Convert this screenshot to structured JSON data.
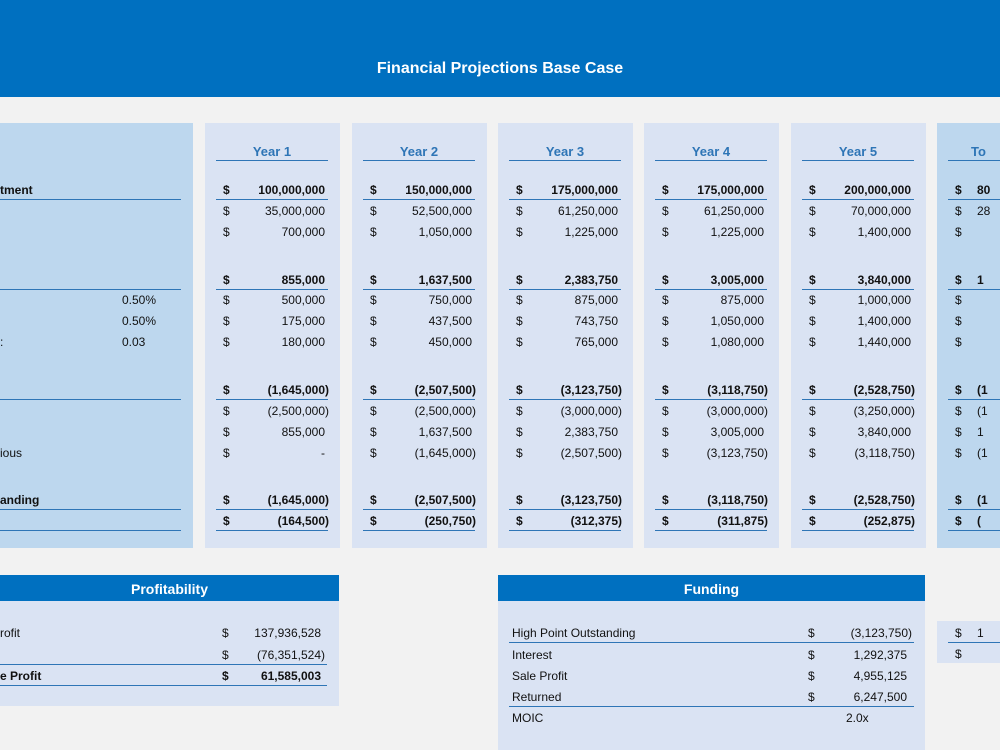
{
  "title": "Financial Projections Base Case",
  "colors": {
    "banner": "#0070c0",
    "accent": "#2e75b6",
    "panel": "#dae3f3",
    "label_panel": "#bdd7ee"
  },
  "labels": {
    "rows": [
      "tment",
      "",
      "",
      "",
      "",
      "",
      "",
      "",
      "",
      "",
      "ious",
      "anding",
      ""
    ],
    "rates": [
      "",
      "",
      "",
      "",
      "0.50%",
      "0.50%",
      "0.03",
      "",
      "",
      "",
      "",
      "",
      ""
    ],
    "row6_suffix": ":"
  },
  "years": [
    {
      "header": "Year 1",
      "values": [
        "100,000,000",
        "35,000,000",
        "700,000",
        "855,000",
        "500,000",
        "175,000",
        "180,000",
        "(1,645,000)",
        "(2,500,000)",
        "855,000",
        "-",
        "(1,645,000)",
        "(164,500)"
      ]
    },
    {
      "header": "Year 2",
      "values": [
        "150,000,000",
        "52,500,000",
        "1,050,000",
        "1,637,500",
        "750,000",
        "437,500",
        "450,000",
        "(2,507,500)",
        "(2,500,000)",
        "1,637,500",
        "(1,645,000)",
        "(2,507,500)",
        "(250,750)"
      ]
    },
    {
      "header": "Year 3",
      "values": [
        "175,000,000",
        "61,250,000",
        "1,225,000",
        "2,383,750",
        "875,000",
        "743,750",
        "765,000",
        "(3,123,750)",
        "(3,000,000)",
        "2,383,750",
        "(2,507,500)",
        "(3,123,750)",
        "(312,375)"
      ]
    },
    {
      "header": "Year 4",
      "values": [
        "175,000,000",
        "61,250,000",
        "1,225,000",
        "3,005,000",
        "875,000",
        "1,050,000",
        "1,080,000",
        "(3,118,750)",
        "(3,000,000)",
        "3,005,000",
        "(3,123,750)",
        "(3,118,750)",
        "(311,875)"
      ]
    },
    {
      "header": "Year 5",
      "values": [
        "200,000,000",
        "70,000,000",
        "1,400,000",
        "3,840,000",
        "1,000,000",
        "1,400,000",
        "1,440,000",
        "(2,528,750)",
        "(3,250,000)",
        "3,840,000",
        "(3,118,750)",
        "(2,528,750)",
        "(252,875)"
      ]
    }
  ],
  "total": {
    "header": "To",
    "values": [
      "80",
      "28",
      "",
      "1",
      "",
      "",
      "",
      "(1",
      "(1",
      "1",
      "(1",
      "(1",
      "("
    ]
  },
  "currency": "$",
  "profitability": {
    "title": "Profitability",
    "rows": [
      {
        "label": "rofit",
        "value": "137,936,528"
      },
      {
        "label": "",
        "value": "(76,351,524)"
      },
      {
        "label": "e Profit",
        "value": "61,585,003"
      }
    ]
  },
  "funding": {
    "title": "Funding",
    "rows": [
      {
        "label": "High Point Outstanding",
        "value": "(3,123,750)",
        "cur": true
      },
      {
        "label": "Interest",
        "value": "1,292,375",
        "cur": true
      },
      {
        "label": "Sale Profit",
        "value": "4,955,125",
        "cur": true
      },
      {
        "label": "Returned",
        "value": "6,247,500",
        "cur": true
      },
      {
        "label": "MOIC",
        "value": "2.0x",
        "cur": false
      }
    ]
  },
  "side_box": {
    "values": [
      "1",
      ""
    ]
  }
}
